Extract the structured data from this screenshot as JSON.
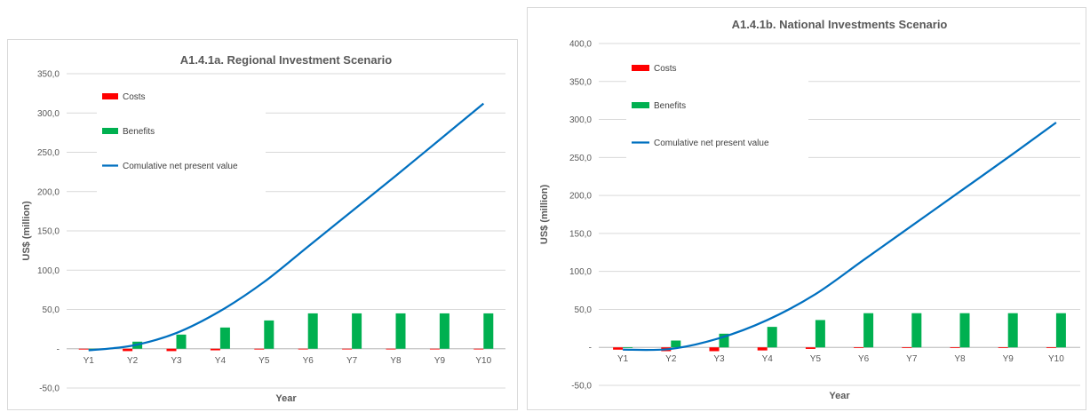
{
  "chart_data": [
    {
      "type": "bar",
      "title": "A1.4.1a. Regional Investment Scenario",
      "xlabel": "Year",
      "ylabel": "US$ (million)",
      "categories": [
        "Y1",
        "Y2",
        "Y3",
        "Y4",
        "Y5",
        "Y6",
        "Y7",
        "Y8",
        "Y9",
        "Y10"
      ],
      "ylim": [
        -50,
        350
      ],
      "yticks": [
        "350,0",
        "300,0",
        "250,0",
        "200,0",
        "150,0",
        "100,0",
        "50,0",
        "-",
        "-50,0"
      ],
      "grid": true,
      "legend_position": "top-left",
      "series": [
        {
          "name": "Costs",
          "kind": "bar",
          "color": "#ff0000",
          "values": [
            -1,
            -3,
            -3,
            -2,
            -1,
            -0.5,
            -0.5,
            -0.5,
            -0.5,
            -0.5
          ]
        },
        {
          "name": "Benefits",
          "kind": "bar",
          "color": "#00b050",
          "values": [
            0,
            9,
            18,
            27,
            36,
            45,
            45,
            45,
            45,
            45
          ]
        },
        {
          "name": "Comulative net present value",
          "kind": "line",
          "color": "#0070c0",
          "values": [
            -2,
            4,
            20,
            48,
            85,
            130,
            175,
            220,
            266,
            312
          ]
        }
      ]
    },
    {
      "type": "bar",
      "title": "A1.4.1b. National Investments Scenario",
      "xlabel": "Year",
      "ylabel": "US$ (million)",
      "categories": [
        "Y1",
        "Y2",
        "Y3",
        "Y4",
        "Y5",
        "Y6",
        "Y7",
        "Y8",
        "Y9",
        "Y10"
      ],
      "ylim": [
        -50,
        400
      ],
      "yticks": [
        "400,0",
        "350,0",
        "300,0",
        "250,0",
        "200,0",
        "150,0",
        "100,0",
        "50,0",
        "-",
        "-50,0"
      ],
      "grid": true,
      "legend_position": "top-left",
      "series": [
        {
          "name": "Costs",
          "kind": "bar",
          "color": "#ff0000",
          "values": [
            -3,
            -5,
            -5,
            -4,
            -2,
            -0.5,
            -0.5,
            -0.5,
            -0.5,
            -0.5
          ]
        },
        {
          "name": "Benefits",
          "kind": "bar",
          "color": "#00b050",
          "values": [
            0,
            9,
            18,
            27,
            36,
            45,
            45,
            45,
            45,
            45
          ]
        },
        {
          "name": "Comulative net present value",
          "kind": "line",
          "color": "#0070c0",
          "values": [
            -3,
            -2,
            12,
            36,
            70,
            115,
            160,
            205,
            250,
            296
          ]
        }
      ]
    }
  ]
}
